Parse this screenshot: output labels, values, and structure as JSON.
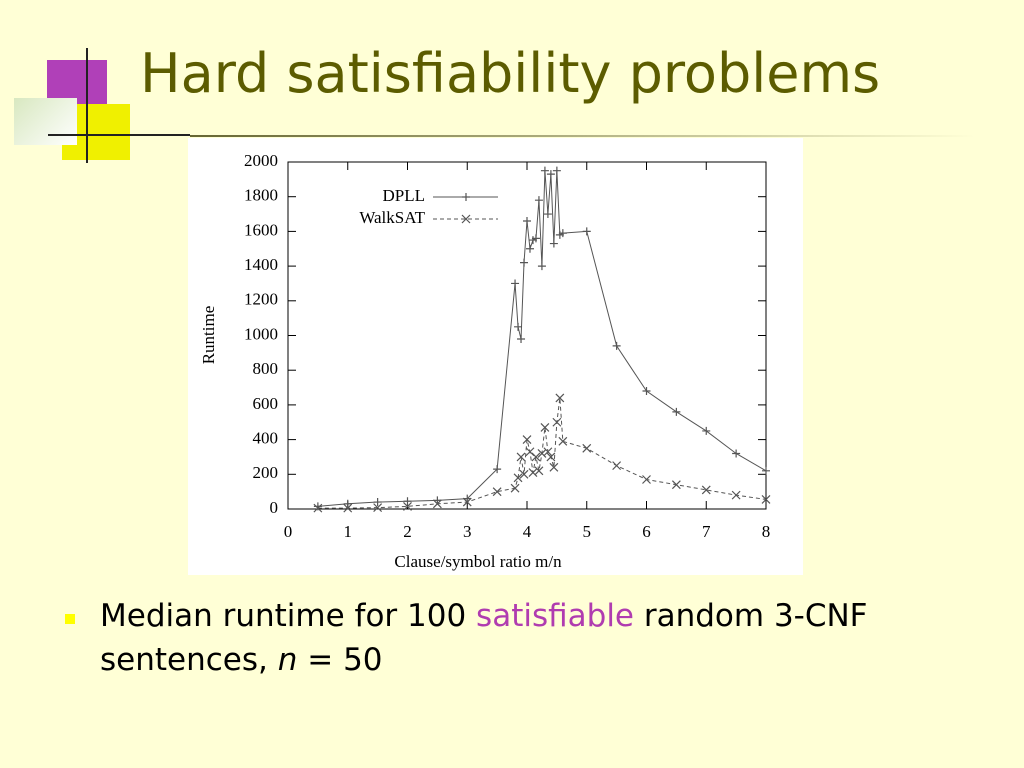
{
  "slide": {
    "title": "Hard satisfiability problems",
    "bullet": [
      "Median runtime for 100 ",
      "satisfiable",
      " random 3-CNF sentences, ",
      "n",
      " = 50"
    ]
  },
  "chart_data": {
    "type": "line",
    "xlabel": "Clause/symbol ratio m/n",
    "ylabel": "Runtime",
    "xlim": [
      0,
      8
    ],
    "xticks": [
      0,
      1,
      2,
      3,
      4,
      5,
      6,
      7,
      8
    ],
    "ylim": [
      0,
      2000
    ],
    "yticks": [
      0,
      200,
      400,
      600,
      800,
      1000,
      1200,
      1400,
      1600,
      1800,
      2000
    ],
    "legend": "upper-left",
    "series": [
      {
        "name": "DPLL",
        "color": "#555555",
        "style": "solid",
        "marker": "plus",
        "x": [
          0.5,
          1,
          1.5,
          2,
          2.5,
          3,
          3.5,
          3.8,
          3.85,
          3.9,
          3.95,
          4.0,
          4.05,
          4.1,
          4.15,
          4.2,
          4.25,
          4.3,
          4.35,
          4.4,
          4.45,
          4.5,
          4.55,
          4.6,
          5,
          5.5,
          6,
          6.5,
          7,
          7.5,
          8
        ],
        "values": [
          15,
          30,
          40,
          45,
          50,
          60,
          230,
          1300,
          1050,
          980,
          1420,
          1660,
          1500,
          1550,
          1560,
          1780,
          1400,
          1950,
          1700,
          1930,
          1530,
          1950,
          1580,
          1590,
          1600,
          940,
          680,
          560,
          450,
          320,
          220
        ]
      },
      {
        "name": "WalkSAT",
        "color": "#555555",
        "style": "dashed",
        "marker": "cross",
        "x": [
          0.5,
          1,
          1.5,
          2,
          2.5,
          3,
          3.5,
          3.8,
          3.85,
          3.9,
          3.95,
          4.0,
          4.05,
          4.1,
          4.15,
          4.2,
          4.25,
          4.3,
          4.35,
          4.4,
          4.45,
          4.5,
          4.55,
          4.6,
          5,
          5.5,
          6,
          6.5,
          7,
          7.5,
          8
        ],
        "values": [
          5,
          5,
          8,
          15,
          30,
          40,
          100,
          120,
          180,
          300,
          200,
          400,
          330,
          210,
          300,
          220,
          320,
          470,
          330,
          300,
          240,
          500,
          640,
          390,
          350,
          250,
          170,
          140,
          110,
          80,
          55
        ]
      }
    ]
  }
}
